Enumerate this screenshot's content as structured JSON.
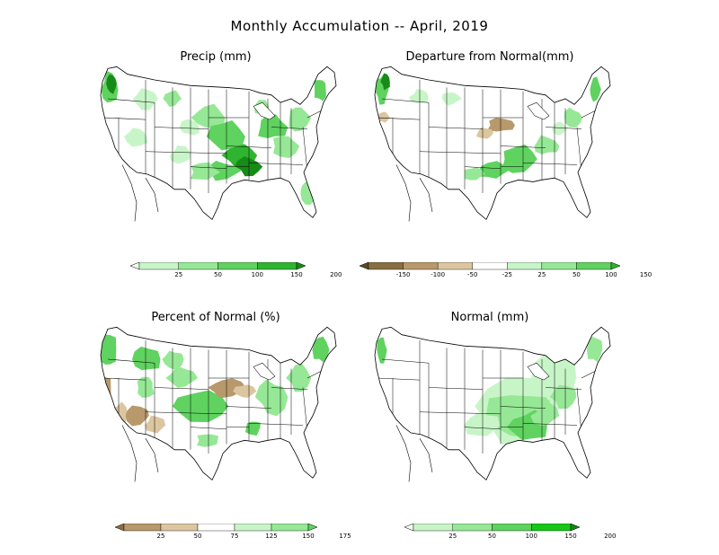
{
  "title": "Monthly Accumulation -- April, 2019",
  "panels": [
    {
      "title": "Precip (mm)"
    },
    {
      "title": "Departure from Normal(mm)"
    },
    {
      "title": "Percent of Normal (%)"
    },
    {
      "title": "Normal (mm)"
    }
  ],
  "colorbars": {
    "precip": {
      "ticks": [
        "25",
        "50",
        "100",
        "150",
        "200"
      ],
      "colors": [
        "#f0fff0",
        "#c8f5c8",
        "#96e896",
        "#5fd25f",
        "#2fb42f",
        "#188a18"
      ]
    },
    "departure": {
      "ticks": [
        "-150",
        "-100",
        "-50",
        "-25",
        "25",
        "50",
        "100",
        "150"
      ],
      "colors": [
        "#5a4a2a",
        "#8a6e43",
        "#b8996b",
        "#dcc6a0",
        "#ffffff",
        "#c8f5c8",
        "#96e896",
        "#5fd25f",
        "#2fb42f"
      ]
    },
    "percent": {
      "ticks": [
        "25",
        "50",
        "75",
        "125",
        "150",
        "175"
      ],
      "colors": [
        "#8a6e43",
        "#b8996b",
        "#dcc6a0",
        "#ffffff",
        "#c8f5c8",
        "#96e896",
        "#5fd25f"
      ]
    },
    "normal": {
      "ticks": [
        "25",
        "50",
        "100",
        "150",
        "200"
      ],
      "colors": [
        "#f0fff0",
        "#c8f5c8",
        "#96e896",
        "#5fd25f",
        "#18c818",
        "#108a10"
      ]
    }
  }
}
